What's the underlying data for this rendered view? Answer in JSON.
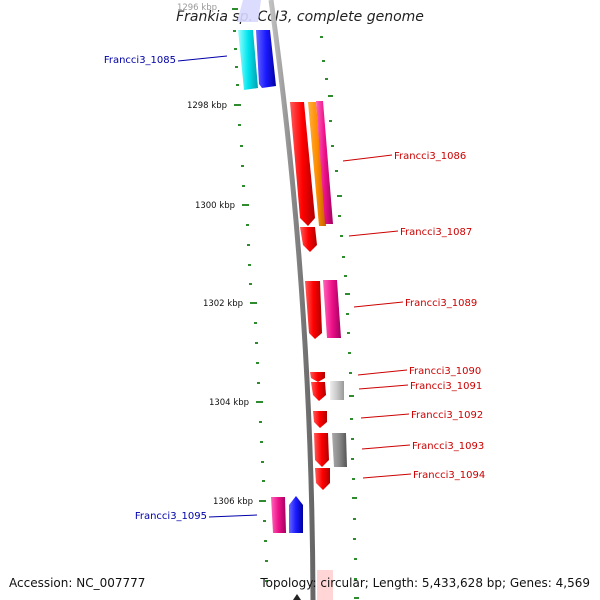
{
  "title": "Frankia sp. CcI3, complete genome",
  "footer": {
    "accession": "Accession: NC_007777",
    "stats": "Topology: circular; Length: 5,433,628 bp; Genes: 4,569"
  },
  "ticks": [
    {
      "label": "1296 kbp"
    },
    {
      "label": "1298 kbp"
    },
    {
      "label": "1300 kbp"
    },
    {
      "label": "1302 kbp"
    },
    {
      "label": "1304 kbp"
    },
    {
      "label": "1306 kbp"
    }
  ],
  "gene_labels": [
    {
      "text": "Francci3_1085",
      "strand": "minus"
    },
    {
      "text": "Francci3_1086",
      "strand": "plus"
    },
    {
      "text": "Francci3_1087",
      "strand": "plus"
    },
    {
      "text": "Francci3_1089",
      "strand": "plus"
    },
    {
      "text": "Francci3_1090",
      "strand": "plus"
    },
    {
      "text": "Francci3_1091",
      "strand": "plus"
    },
    {
      "text": "Francci3_1092",
      "strand": "plus"
    },
    {
      "text": "Francci3_1093",
      "strand": "plus"
    },
    {
      "text": "Francci3_1094",
      "strand": "plus"
    },
    {
      "text": "Francci3_1095",
      "strand": "minus"
    }
  ],
  "colors": {
    "plus_label": "#cc0000",
    "minus_label": "#0000aa",
    "backbone": "#8a8a8a",
    "tick_green": "#2e8b2e",
    "cds_red": "#ff0000",
    "cds_magenta": "#ee1188",
    "cds_orange": "#ff8c00",
    "cds_cyan": "#00e5ee",
    "cds_blue": "#1a1aff",
    "cds_gray": "#888888",
    "cds_lightgray": "#c8c8c8"
  }
}
